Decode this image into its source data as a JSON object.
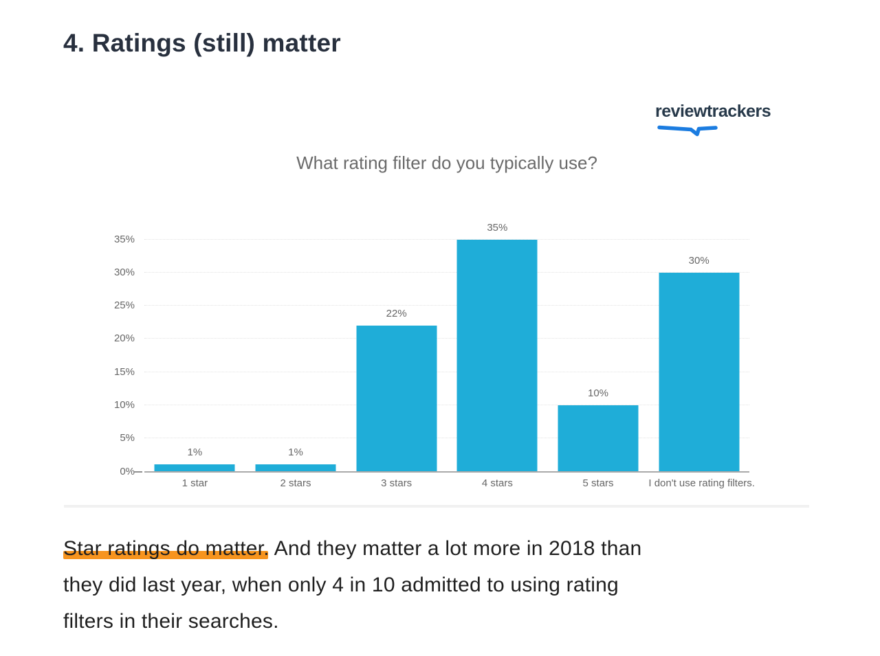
{
  "page": {
    "heading": "4. Ratings (still) matter"
  },
  "logo": {
    "text": "reviewtrackers",
    "swoosh_color": "#1b7ce0"
  },
  "chart_data": {
    "type": "bar",
    "title": "What rating filter do you typically use?",
    "categories": [
      "1 star",
      "2 stars",
      "3 stars",
      "4 stars",
      "5 stars",
      "I don't use rating filters."
    ],
    "values": [
      1,
      1,
      22,
      35,
      10,
      30
    ],
    "value_labels": [
      "1%",
      "1%",
      "22%",
      "35%",
      "10%",
      "30%"
    ],
    "xlabel": "",
    "ylabel": "",
    "ylim": [
      0,
      35
    ],
    "ytick_labels": [
      "0%",
      "5%",
      "10%",
      "15%",
      "20%",
      "25%",
      "30%",
      "35%"
    ],
    "grid": "horizontal-dotted",
    "legend": "none",
    "bar_color": "#1fadd8"
  },
  "body": {
    "highlight_color": "#f7941e",
    "lines": [
      {
        "highlight": "Star ratings do matter.",
        "text": " And they matter a lot more in 2018 than"
      },
      {
        "highlight": "",
        "text": "they did last year, when only 4 in 10 admitted to using rating"
      },
      {
        "highlight": "",
        "text": "filters in their searches."
      }
    ]
  }
}
